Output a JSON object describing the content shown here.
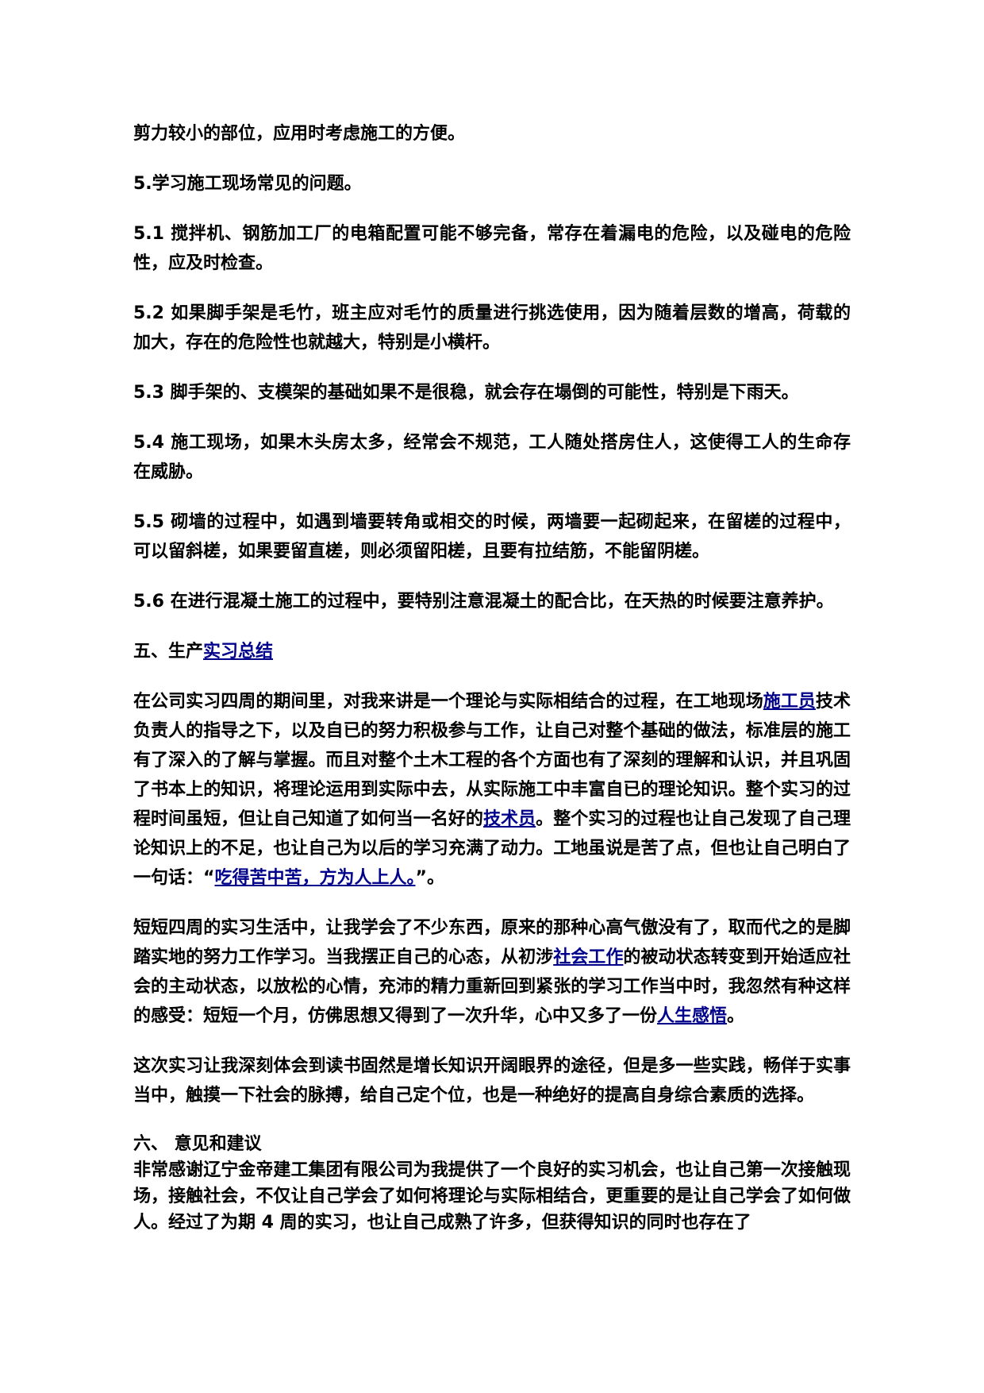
{
  "page": {
    "background_color": "#ffffff",
    "text_color": "#000000",
    "link_color": "#00008B"
  },
  "document": {
    "paragraphs": [
      {
        "id": "para-shear-force",
        "segments": [
          {
            "text": "剪力较小的部位，应用时考虑施工的方便。"
          }
        ]
      },
      {
        "id": "para-5-heading",
        "segments": [
          {
            "text": "5.学习施工现场常见的问题。"
          }
        ]
      },
      {
        "id": "para-5-1",
        "segments": [
          {
            "text": "5.1 搅拌机、钢筋加工厂的电箱配置可能不够完备，常存在着漏电的危险，以及碰电的危险性，应及时检查。"
          }
        ]
      },
      {
        "id": "para-5-2",
        "segments": [
          {
            "text": "5.2 如果脚手架是毛竹，班主应对毛竹的质量进行挑选使用，因为随着层数的增高，荷载的加大，存在的危险性也就越大，特别是小横杆。"
          }
        ]
      },
      {
        "id": "para-5-3",
        "segments": [
          {
            "text": "5.3 脚手架的、支模架的基础如果不是很稳，就会存在塌倒的可能性，特别是下雨天。"
          }
        ]
      },
      {
        "id": "para-5-4",
        "segments": [
          {
            "text": "5.4 施工现场，如果木头房太多，经常会不规范，工人随处搭房住人，这使得工人的生命存在威胁。"
          }
        ]
      },
      {
        "id": "para-5-5",
        "segments": [
          {
            "text": "5.5 砌墙的过程中，如遇到墙要转角或相交的时候，两墙要一起砌起来，在留槎的过程中，可以留斜槎，如果要留直槎，则必须留阳槎，且要有拉结筋，不能留阴槎。"
          }
        ]
      },
      {
        "id": "para-5-6",
        "segments": [
          {
            "text": "5.6 在进行混凝土施工的过程中，要特别注意混凝土的配合比，在天热的时候要注意养护。"
          }
        ]
      },
      {
        "id": "heading-section-5",
        "segments": [
          {
            "text": "五、生产"
          },
          {
            "text": "实习总结",
            "link": true,
            "name": "internship-summary-link"
          }
        ]
      },
      {
        "id": "para-summary-main",
        "segments": [
          {
            "text": "在公司实习四周的期间里，对我来讲是一个理论与实际相结合的过程，在工地现场"
          },
          {
            "text": "施工员",
            "link": true,
            "name": "construction-worker-link"
          },
          {
            "text": "技术负责人的指导之下，以及自已的努力积极参与工作，让自己对整个基础的做法，标准层的施工有了深入的了解与掌握。而且对整个土木工程的各个方面也有了深刻的理解和认识，并且巩固了书本上的知识，将理论运用到实际中去，从实际施工中丰富自已的理论知识。整个实习的过程时间虽短，但让自己知道了如何当一名好的"
          },
          {
            "text": "技术员",
            "link": true,
            "name": "technician-link"
          },
          {
            "text": "。整个实习的过程也让自己发现了自己理论知识上的不足，也让自己为以后的学习充满了动力。工地虽说是苦了点，但也让自己明白了一句话：“"
          },
          {
            "text": "吃得苦中苦，方为人上人。",
            "link": true,
            "name": "proverb-link"
          },
          {
            "text": "”。"
          }
        ]
      },
      {
        "id": "para-four-weeks",
        "segments": [
          {
            "text": "短短四周的实习生活中，让我学会了不少东西，原来的那种心高气傲没有了，取而代之的是脚踏实地的努力工作学习。当我摆正自己的心态，从初涉"
          },
          {
            "text": "社会工作",
            "link": true,
            "name": "social-work-link"
          },
          {
            "text": "的被动状态转变到开始适应社会的主动状态，以放松的心情，充沛的精力重新回到紧张的学习工作当中时，我忽然有种这样的感受：短短一个月，仿佛思想又得到了一次升华，心中又多了一份"
          },
          {
            "text": "人生感悟",
            "link": true,
            "name": "life-insight-link"
          },
          {
            "text": "。"
          }
        ]
      },
      {
        "id": "para-reading-practice",
        "segments": [
          {
            "text": "这次实习让我深刻体会到读书固然是增长知识开阔眼界的途径，但是多一些实践，畅佯于实事当中，触摸一下社会的脉搏，给自己定个位，也是一种绝好的提高自身综合素质的选择。"
          }
        ]
      },
      {
        "id": "heading-section-6",
        "style": "no-gap tight",
        "segments": [
          {
            "text": "六、 意见和建议"
          }
        ]
      },
      {
        "id": "para-thanks",
        "style": "tight",
        "segments": [
          {
            "text": "非常感谢辽宁金帝建工集团有限公司为我提供了一个良好的实习机会，也让自己第一次接触现场，接触社会，不仅让自己学会了如何将理论与实际相结合，更重要的是让自己学会了如何做人。经过了为期 4 周的实习，也让自己成熟了许多，但获得知识的同时也存在了"
          }
        ]
      }
    ]
  }
}
